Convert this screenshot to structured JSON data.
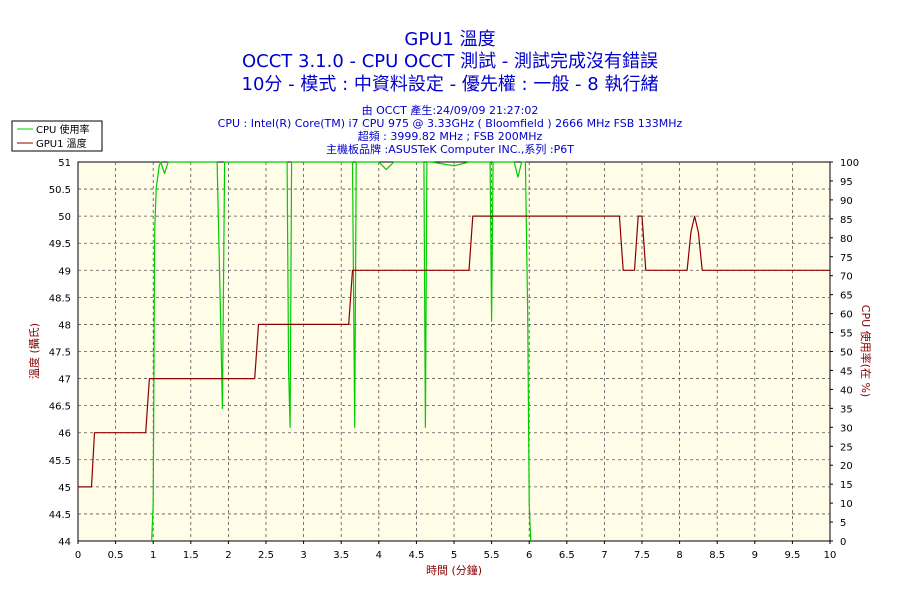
{
  "chart_data": {
    "type": "line",
    "title": "GPU1 溫度",
    "subtitle1": "OCCT 3.1.0 - CPU OCCT 測試 - 測試完成沒有錯誤",
    "subtitle2": "10分 - 模式 : 中資料設定 - 優先權 : 一般 - 8 執行緒",
    "info": [
      "由 OCCT 產生:24/09/09 21:27:02",
      "CPU : Intel(R) Core(TM) i7 CPU 975 @ 3.33GHz ( Bloomfield ) 2666 MHz FSB 133MHz",
      "超頻 : 3999.82 MHz ; FSB 200MHz",
      "主機板品牌 :ASUSTeK Computer INC.,系列 :P6T"
    ],
    "xlabel": "時間 (分鐘)",
    "ylabel_left": "溫度 (攝氏)",
    "ylabel_right": "CPU 使用率(在 %)",
    "xlim": [
      0,
      10
    ],
    "ylim_left": [
      44,
      51
    ],
    "ylim_right": [
      0,
      100
    ],
    "x_ticks": [
      "0",
      "0.5",
      "1",
      "1.5",
      "2",
      "2.5",
      "3",
      "3.5",
      "4",
      "4.5",
      "5",
      "5.5",
      "6",
      "6.5",
      "7",
      "7.5",
      "8",
      "8.5",
      "9",
      "9.5",
      "10"
    ],
    "y_left_ticks": [
      "44",
      "44.5",
      "45",
      "45.5",
      "46",
      "46.5",
      "47",
      "47.5",
      "48",
      "48.5",
      "49",
      "49.5",
      "50",
      "50.5",
      "51"
    ],
    "y_right_ticks": [
      "0",
      "5",
      "10",
      "15",
      "20",
      "25",
      "30",
      "35",
      "40",
      "45",
      "50",
      "55",
      "60",
      "65",
      "70",
      "75",
      "80",
      "85",
      "90",
      "95",
      "100"
    ],
    "grid": true,
    "legend_position": "top-left",
    "series": [
      {
        "name": "CPU 使用率",
        "axis": "right",
        "color": "#00cc00",
        "x": [
          0.98,
          1.0,
          1.02,
          1.04,
          1.06,
          1.08,
          1.1,
          1.15,
          1.2,
          1.3,
          1.5,
          1.7,
          1.85,
          1.9,
          1.92,
          1.95,
          2.0,
          2.3,
          2.6,
          2.78,
          2.8,
          2.82,
          2.84,
          3.0,
          3.3,
          3.6,
          3.65,
          3.68,
          3.7,
          3.75,
          4.0,
          4.1,
          4.2,
          4.5,
          4.6,
          4.62,
          4.64,
          4.66,
          4.7,
          5.0,
          5.2,
          5.3,
          5.48,
          5.5,
          5.52,
          5.55,
          5.6,
          5.7,
          5.8,
          5.85,
          5.9,
          5.95,
          5.98,
          6.0,
          6.02
        ],
        "values": [
          0,
          10,
          82,
          93,
          96,
          99,
          100,
          97,
          100,
          100,
          100,
          100,
          100,
          55,
          35,
          100,
          100,
          100,
          100,
          100,
          45,
          30,
          100,
          100,
          100,
          100,
          100,
          30,
          100,
          100,
          100,
          98,
          100,
          100,
          100,
          30,
          100,
          100,
          100,
          99,
          100,
          100,
          100,
          58,
          100,
          100,
          100,
          100,
          100,
          96,
          100,
          100,
          60,
          10,
          0
        ]
      },
      {
        "name": "GPU1 溫度",
        "axis": "left",
        "color": "#8b0000",
        "x": [
          0,
          0.18,
          0.22,
          0.9,
          0.95,
          1.9,
          1.95,
          2.35,
          2.4,
          3.6,
          3.65,
          5.2,
          5.25,
          7.2,
          7.25,
          7.4,
          7.45,
          7.5,
          7.55,
          8.1,
          8.15,
          8.2,
          8.25,
          8.3,
          10
        ],
        "values": [
          45,
          45,
          46,
          46,
          47,
          47,
          47,
          47,
          48,
          48,
          49,
          49,
          50,
          50,
          49,
          49,
          50,
          50,
          49,
          49,
          49.7,
          50,
          49.7,
          49,
          49
        ]
      }
    ]
  }
}
